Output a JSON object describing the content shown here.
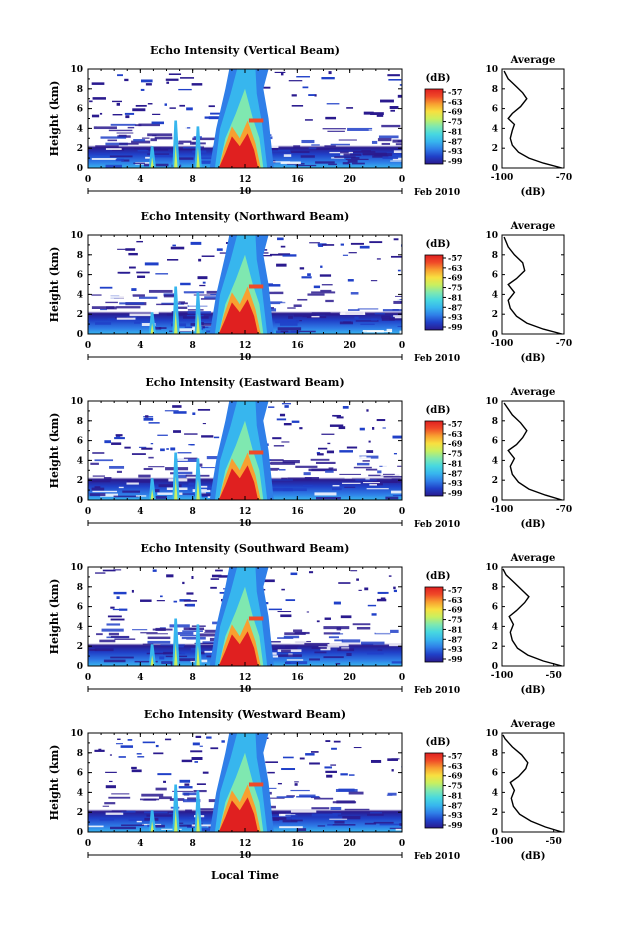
{
  "figure": {
    "xlabel": "Local Time",
    "date_label": "Feb 2010",
    "ylabel": "Height (km)",
    "colorbar_unit": "(dB)",
    "avg_title": "Average",
    "avg_xlabel": "(dB)"
  },
  "colormap": [
    "#2a1a8e",
    "#2040c8",
    "#2f7fe8",
    "#37b6ee",
    "#47d8e0",
    "#7fe8b0",
    "#c8f060",
    "#f8e040",
    "#f8a030",
    "#f04a28",
    "#e02020"
  ],
  "chart_data": [
    {
      "type": "heatmap",
      "title": "Echo Intensity (Vertical Beam)",
      "x_ticks": [
        "0",
        "4",
        "8",
        "12",
        "16",
        "20",
        "0"
      ],
      "x_day_label": "10",
      "xlim": [
        0,
        24
      ],
      "ylim": [
        0,
        10
      ],
      "y_ticks": [
        "0",
        "2",
        "4",
        "6",
        "8",
        "10"
      ],
      "colorbar_ticks": [
        "-57",
        "-63",
        "-69",
        "-75",
        "-81",
        "-87",
        "-93",
        "-99"
      ],
      "average": {
        "title": "Average",
        "xlabel": "(dB)",
        "xlim": [
          -100,
          -70
        ],
        "x_ticks": [
          "-100",
          "-70"
        ],
        "y_ticks": [
          "0",
          "2",
          "4",
          "6",
          "8",
          "10"
        ],
        "profile": [
          [
            -71,
            0
          ],
          [
            -80,
            0.5
          ],
          [
            -87,
            1.0
          ],
          [
            -92,
            1.6
          ],
          [
            -95,
            2.3
          ],
          [
            -96,
            3.0
          ],
          [
            -95,
            3.8
          ],
          [
            -94,
            4.4
          ],
          [
            -97,
            5.0
          ],
          [
            -95,
            5.5
          ],
          [
            -91,
            6.2
          ],
          [
            -88,
            7.0
          ],
          [
            -90,
            7.6
          ],
          [
            -93,
            8.2
          ],
          [
            -97,
            9.0
          ],
          [
            -99,
            9.8
          ]
        ]
      }
    },
    {
      "type": "heatmap",
      "title": "Echo Intensity (Northward Beam)",
      "x_ticks": [
        "0",
        "4",
        "8",
        "12",
        "16",
        "20",
        "0"
      ],
      "x_day_label": "10",
      "xlim": [
        0,
        24
      ],
      "ylim": [
        0,
        10
      ],
      "y_ticks": [
        "0",
        "2",
        "4",
        "6",
        "8",
        "10"
      ],
      "colorbar_ticks": [
        "-57",
        "-63",
        "-69",
        "-75",
        "-81",
        "-87",
        "-93",
        "-99"
      ],
      "average": {
        "title": "Average",
        "xlabel": "(dB)",
        "xlim": [
          -100,
          -70
        ],
        "x_ticks": [
          "-100",
          "-70"
        ],
        "y_ticks": [
          "0",
          "2",
          "4",
          "6",
          "8",
          "10"
        ],
        "profile": [
          [
            -71,
            0
          ],
          [
            -80,
            0.5
          ],
          [
            -88,
            1.1
          ],
          [
            -93,
            1.8
          ],
          [
            -96,
            2.6
          ],
          [
            -97,
            3.4
          ],
          [
            -94,
            4.2
          ],
          [
            -97,
            5.0
          ],
          [
            -93,
            5.6
          ],
          [
            -89,
            6.4
          ],
          [
            -90,
            7.2
          ],
          [
            -94,
            8.0
          ],
          [
            -97,
            8.8
          ],
          [
            -99,
            9.8
          ]
        ]
      }
    },
    {
      "type": "heatmap",
      "title": "Echo Intensity (Eastward Beam)",
      "x_ticks": [
        "0",
        "4",
        "8",
        "12",
        "16",
        "20",
        "0"
      ],
      "x_day_label": "10",
      "xlim": [
        0,
        24
      ],
      "ylim": [
        0,
        10
      ],
      "y_ticks": [
        "0",
        "2",
        "4",
        "6",
        "8",
        "10"
      ],
      "colorbar_ticks": [
        "-57",
        "-63",
        "-69",
        "-75",
        "-81",
        "-87",
        "-93",
        "-99"
      ],
      "average": {
        "title": "Average",
        "xlabel": "(dB)",
        "xlim": [
          -100,
          -70
        ],
        "x_ticks": [
          "-100",
          "-70"
        ],
        "y_ticks": [
          "0",
          "2",
          "4",
          "6",
          "8",
          "10"
        ],
        "profile": [
          [
            -71,
            0
          ],
          [
            -79,
            0.5
          ],
          [
            -87,
            1.1
          ],
          [
            -92,
            1.8
          ],
          [
            -95,
            2.6
          ],
          [
            -96,
            3.4
          ],
          [
            -94,
            4.2
          ],
          [
            -97,
            5.0
          ],
          [
            -93,
            5.6
          ],
          [
            -90,
            6.3
          ],
          [
            -88,
            7.0
          ],
          [
            -91,
            7.8
          ],
          [
            -95,
            8.6
          ],
          [
            -99,
            9.8
          ]
        ]
      }
    },
    {
      "type": "heatmap",
      "title": "Echo Intensity (Southward Beam)",
      "x_ticks": [
        "0",
        "4",
        "8",
        "12",
        "16",
        "20",
        "0"
      ],
      "x_day_label": "10",
      "xlim": [
        0,
        24
      ],
      "ylim": [
        0,
        10
      ],
      "y_ticks": [
        "0",
        "2",
        "4",
        "6",
        "8",
        "10"
      ],
      "colorbar_ticks": [
        "-57",
        "-63",
        "-69",
        "-75",
        "-81",
        "-87",
        "-93",
        "-99"
      ],
      "average": {
        "title": "Average",
        "xlabel": "(dB)",
        "xlim": [
          -100,
          -40
        ],
        "x_ticks": [
          "-100",
          "-50"
        ],
        "y_ticks": [
          "0",
          "2",
          "4",
          "6",
          "8",
          "10"
        ],
        "profile": [
          [
            -42,
            0
          ],
          [
            -60,
            0.5
          ],
          [
            -75,
            1.1
          ],
          [
            -85,
            1.8
          ],
          [
            -90,
            2.6
          ],
          [
            -92,
            3.4
          ],
          [
            -89,
            4.2
          ],
          [
            -93,
            5.0
          ],
          [
            -86,
            5.6
          ],
          [
            -78,
            6.4
          ],
          [
            -74,
            7.0
          ],
          [
            -80,
            7.6
          ],
          [
            -88,
            8.4
          ],
          [
            -96,
            9.2
          ],
          [
            -99,
            9.8
          ]
        ]
      }
    },
    {
      "type": "heatmap",
      "title": "Echo Intensity (Westward Beam)",
      "x_ticks": [
        "0",
        "4",
        "8",
        "12",
        "16",
        "20",
        "0"
      ],
      "x_day_label": "10",
      "xlim": [
        0,
        24
      ],
      "ylim": [
        0,
        10
      ],
      "y_ticks": [
        "0",
        "2",
        "4",
        "6",
        "8",
        "10"
      ],
      "colorbar_ticks": [
        "-57",
        "-63",
        "-69",
        "-75",
        "-81",
        "-87",
        "-93",
        "-99"
      ],
      "average": {
        "title": "Average",
        "xlabel": "(dB)",
        "xlim": [
          -100,
          -40
        ],
        "x_ticks": [
          "-100",
          "-50"
        ],
        "y_ticks": [
          "0",
          "2",
          "4",
          "6",
          "8",
          "10"
        ],
        "profile": [
          [
            -42,
            0
          ],
          [
            -58,
            0.5
          ],
          [
            -72,
            1.1
          ],
          [
            -83,
            1.8
          ],
          [
            -89,
            2.6
          ],
          [
            -91,
            3.4
          ],
          [
            -88,
            4.2
          ],
          [
            -92,
            5.0
          ],
          [
            -84,
            5.6
          ],
          [
            -77,
            6.4
          ],
          [
            -75,
            7.0
          ],
          [
            -81,
            7.8
          ],
          [
            -90,
            8.6
          ],
          [
            -97,
            9.4
          ],
          [
            -99,
            9.8
          ]
        ]
      }
    }
  ]
}
